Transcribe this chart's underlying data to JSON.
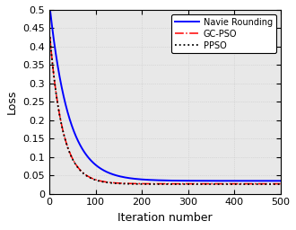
{
  "title": "",
  "xlabel": "Iteration number",
  "ylabel": "Loss",
  "xlim": [
    0,
    500
  ],
  "ylim": [
    0,
    0.5
  ],
  "yticks": [
    0,
    0.05,
    0.1,
    0.15,
    0.2,
    0.25,
    0.3,
    0.35,
    0.4,
    0.45,
    0.5
  ],
  "xticks": [
    0,
    100,
    200,
    300,
    400,
    500
  ],
  "lines": [
    {
      "label": "Navie Rounding",
      "color": "#0000ff",
      "linestyle": "solid",
      "linewidth": 1.4,
      "A": 0.47,
      "B": 0.035,
      "k": 12.0
    },
    {
      "label": "GC-PSO",
      "color": "#ff0000",
      "linestyle": "dashdot",
      "linewidth": 1.1,
      "A": 0.4,
      "B": 0.027,
      "k": 18.0
    },
    {
      "label": "PPSO",
      "color": "#000000",
      "linestyle": "dotted",
      "linewidth": 1.3,
      "A": 0.4,
      "B": 0.026,
      "k": 18.0
    }
  ],
  "legend_loc": "upper right",
  "grid_color": "#c8c8c8",
  "grid_linestyle": "dotted",
  "background_color": "#e8e8e8",
  "figure_bg": "#ffffff",
  "tick_fontsize": 8,
  "label_fontsize": 9,
  "legend_fontsize": 7
}
